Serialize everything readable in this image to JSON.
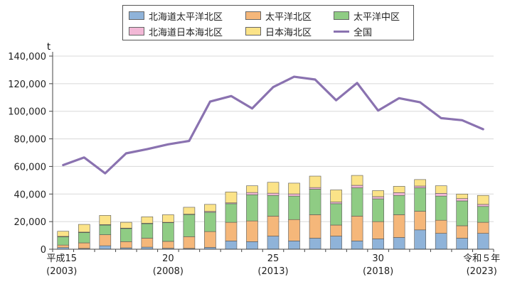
{
  "chart_data": {
    "type": "bar",
    "stacked": true,
    "ylabel": "t",
    "ylim": [
      0,
      140000
    ],
    "yticks": [
      0,
      20000,
      40000,
      60000,
      80000,
      100000,
      120000,
      140000
    ],
    "ytick_labels": [
      "0",
      "20,000",
      "40,000",
      "60,000",
      "80,000",
      "100,000",
      "120,000",
      "140,000"
    ],
    "categories": [
      "2003",
      "2004",
      "2005",
      "2006",
      "2007",
      "2008",
      "2009",
      "2010",
      "2011",
      "2012",
      "2013",
      "2014",
      "2015",
      "2016",
      "2017",
      "2018",
      "2019",
      "2020",
      "2021",
      "2022",
      "2023"
    ],
    "x_labels": [
      {
        "index": 0,
        "line1": "平成15",
        "line2": "(2003)"
      },
      {
        "index": 5,
        "line1": "20",
        "line2": "(2008)"
      },
      {
        "index": 10,
        "line1": "25",
        "line2": "(2013)"
      },
      {
        "index": 15,
        "line1": "30",
        "line2": "(2018)"
      },
      {
        "index": 20,
        "line1": "令和５年",
        "line2": "(2023)"
      }
    ],
    "legend_position": "top",
    "series": [
      {
        "name": "北海道太平洋北区",
        "kind": "bar",
        "color": "#8fb3d9",
        "values": [
          1200,
          600,
          2500,
          1000,
          1500,
          700,
          600,
          1300,
          6000,
          5500,
          9500,
          6000,
          8000,
          9500,
          6000,
          7500,
          8500,
          14000,
          11500,
          8000,
          11500
        ]
      },
      {
        "name": "太平洋北区",
        "kind": "bar",
        "color": "#f5b77a",
        "values": [
          1800,
          4000,
          8000,
          4500,
          6500,
          5000,
          8500,
          11500,
          13500,
          15000,
          14500,
          15500,
          17000,
          8000,
          18000,
          12500,
          16500,
          13500,
          9500,
          9000,
          8000
        ]
      },
      {
        "name": "太平洋中区",
        "kind": "bar",
        "color": "#8fcc84",
        "values": [
          6000,
          7500,
          7000,
          9500,
          10500,
          13500,
          16000,
          14000,
          13500,
          19000,
          15000,
          17000,
          18500,
          15500,
          20500,
          16500,
          14000,
          17000,
          17500,
          18000,
          11500
        ]
      },
      {
        "name": "北海道日本海北区",
        "kind": "bar",
        "color": "#f2b8d6",
        "values": [
          300,
          300,
          300,
          300,
          300,
          300,
          300,
          600,
          600,
          1600,
          1600,
          1600,
          1200,
          1200,
          1800,
          1600,
          2000,
          1300,
          2000,
          1700,
          1500
        ]
      },
      {
        "name": "日本海北区",
        "kind": "bar",
        "color": "#fbe388",
        "values": [
          3700,
          5600,
          6700,
          4200,
          4700,
          5500,
          5000,
          5100,
          7900,
          4900,
          7900,
          7800,
          8300,
          8800,
          7200,
          4400,
          4600,
          4700,
          5500,
          3300,
          6500
        ]
      },
      {
        "name": "全国",
        "kind": "line",
        "color": "#8a72b0",
        "values": [
          61000,
          66500,
          55000,
          69500,
          72500,
          76000,
          78500,
          107000,
          111000,
          102000,
          117500,
          125000,
          123000,
          108000,
          120500,
          100500,
          109500,
          106500,
          95000,
          93500,
          87000
        ]
      }
    ]
  }
}
